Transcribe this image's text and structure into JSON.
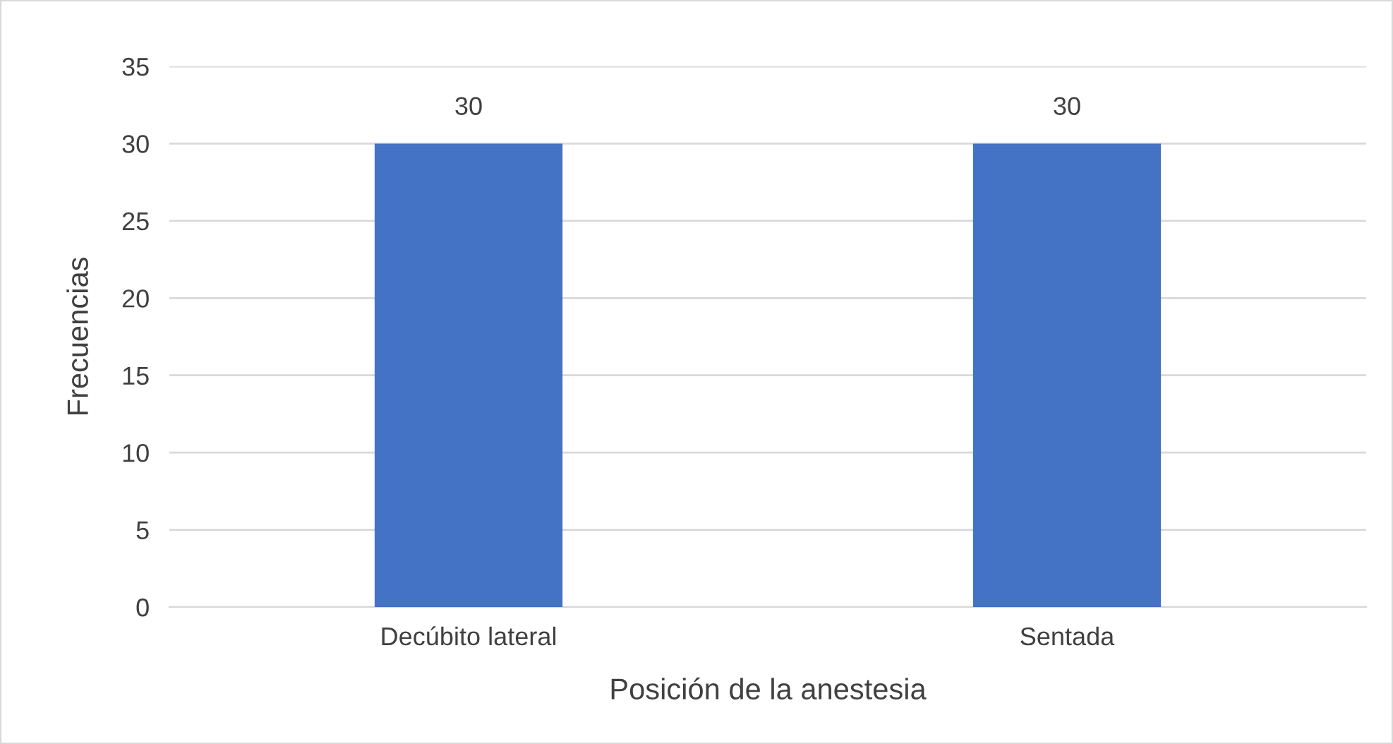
{
  "chart_data": {
    "type": "bar",
    "xlabel": "Posición de la anestesia",
    "ylabel": "Frecuencias",
    "categories": [
      "Decúbito lateral",
      "Sentada"
    ],
    "values": [
      30,
      30
    ],
    "color": "#4472c4",
    "ylim": [
      0,
      35
    ],
    "yticks": [
      0,
      5,
      10,
      15,
      20,
      25,
      30,
      35
    ],
    "grid": "y",
    "data_labels": true
  }
}
